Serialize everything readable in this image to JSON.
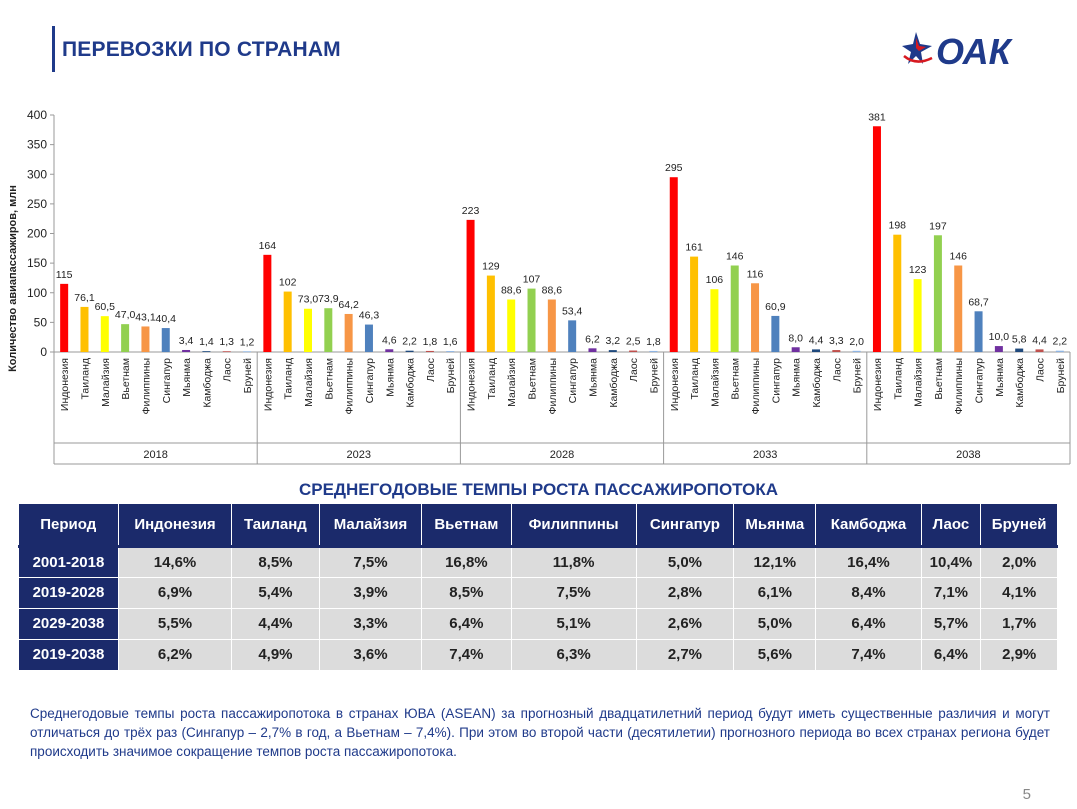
{
  "header": {
    "title": "ПЕРЕВОЗКИ ПО СТРАНАМ",
    "logo_text": "ОАК"
  },
  "colors": {
    "brand": "#1f3a8a",
    "table_header": "#1b2a6b",
    "table_cell": "#dcdcdc"
  },
  "chart_data": {
    "type": "bar",
    "ylabel": "Количество авиапассажиров, млн",
    "ylim": [
      0,
      400
    ],
    "yticks": [
      "0",
      "50",
      "100",
      "150",
      "200",
      "250",
      "300",
      "350",
      "400"
    ],
    "grid": false,
    "categories": [
      "Индонезия",
      "Таиланд",
      "Малайзия",
      "Вьетнам",
      "Филиппины",
      "Сингапур",
      "Мьянма",
      "Камбоджа",
      "Лаос",
      "Бруней"
    ],
    "category_colors": [
      "#ff0000",
      "#ffc000",
      "#ffff00",
      "#92d050",
      "#f79646",
      "#4f81bd",
      "#7030a0",
      "#1f497d",
      "#c0504d",
      "#8eb4e3"
    ],
    "groups": [
      {
        "year": "2018",
        "values": [
          115,
          76.1,
          60.5,
          47.0,
          43.1,
          40.4,
          3.4,
          1.4,
          1.3,
          1.2
        ],
        "labels": [
          "115",
          "76,1",
          "60,5",
          "47,0",
          "43,1",
          "40,4",
          "3,4",
          "1,4",
          "1,3",
          "1,2"
        ]
      },
      {
        "year": "2023",
        "values": [
          164,
          102,
          73.0,
          73.9,
          64.2,
          46.3,
          4.6,
          2.2,
          1.8,
          1.6
        ],
        "labels": [
          "164",
          "102",
          "73,0",
          "73,9",
          "64,2",
          "46,3",
          "4,6",
          "2,2",
          "1,8",
          "1,6"
        ]
      },
      {
        "year": "2028",
        "values": [
          223,
          129,
          88.6,
          107,
          88.6,
          53.4,
          6.2,
          3.2,
          2.5,
          1.8
        ],
        "labels": [
          "223",
          "129",
          "88,6",
          "107",
          "88,6",
          "53,4",
          "6,2",
          "3,2",
          "2,5",
          "1,8"
        ]
      },
      {
        "year": "2033",
        "values": [
          295,
          161,
          106,
          146,
          116,
          60.9,
          8.0,
          4.4,
          3.3,
          2.0
        ],
        "labels": [
          "295",
          "161",
          "106",
          "146",
          "116",
          "60,9",
          "8,0",
          "4,4",
          "3,3",
          "2,0"
        ]
      },
      {
        "year": "2038",
        "values": [
          381,
          198,
          123,
          197,
          146,
          68.7,
          10.0,
          5.8,
          4.4,
          2.2
        ],
        "labels": [
          "381",
          "198",
          "123",
          "197",
          "146",
          "68,7",
          "10,0",
          "5,8",
          "4,4",
          "2,2"
        ]
      }
    ]
  },
  "table": {
    "title": "СРЕДНЕГОДОВЫЕ ТЕМПЫ РОСТА ПАССАЖИРОПОТОКА",
    "headers": [
      "Период",
      "Индонезия",
      "Таиланд",
      "Малайзия",
      "Вьетнам",
      "Филиппины",
      "Сингапур",
      "Мьянма",
      "Камбоджа",
      "Лаос",
      "Бруней"
    ],
    "rows": [
      [
        "2001-2018",
        "14,6%",
        "8,5%",
        "7,5%",
        "16,8%",
        "11,8%",
        "5,0%",
        "12,1%",
        "16,4%",
        "10,4%",
        "2,0%"
      ],
      [
        "2019-2028",
        "6,9%",
        "5,4%",
        "3,9%",
        "8,5%",
        "7,5%",
        "2,8%",
        "6,1%",
        "8,4%",
        "7,1%",
        "4,1%"
      ],
      [
        "2029-2038",
        "5,5%",
        "4,4%",
        "3,3%",
        "6,4%",
        "5,1%",
        "2,6%",
        "5,0%",
        "6,4%",
        "5,7%",
        "1,7%"
      ],
      [
        "2019-2038",
        "6,2%",
        "4,9%",
        "3,6%",
        "7,4%",
        "6,3%",
        "2,7%",
        "5,6%",
        "7,4%",
        "6,4%",
        "2,9%"
      ]
    ]
  },
  "footnote": "Среднегодовые темпы роста пассажиропотока в странах ЮВА (ASEAN) за прогнозный двадцатилетний период будут иметь существенные различия и могут отличаться до трёх раз (Сингапур – 2,7% в год, а Вьетнам – 7,4%). При этом во второй части (десятилетии) прогнозного периода во всех странах региона будет происходить значимое сокращение темпов роста пассажиропотока.",
  "page_number": "5"
}
